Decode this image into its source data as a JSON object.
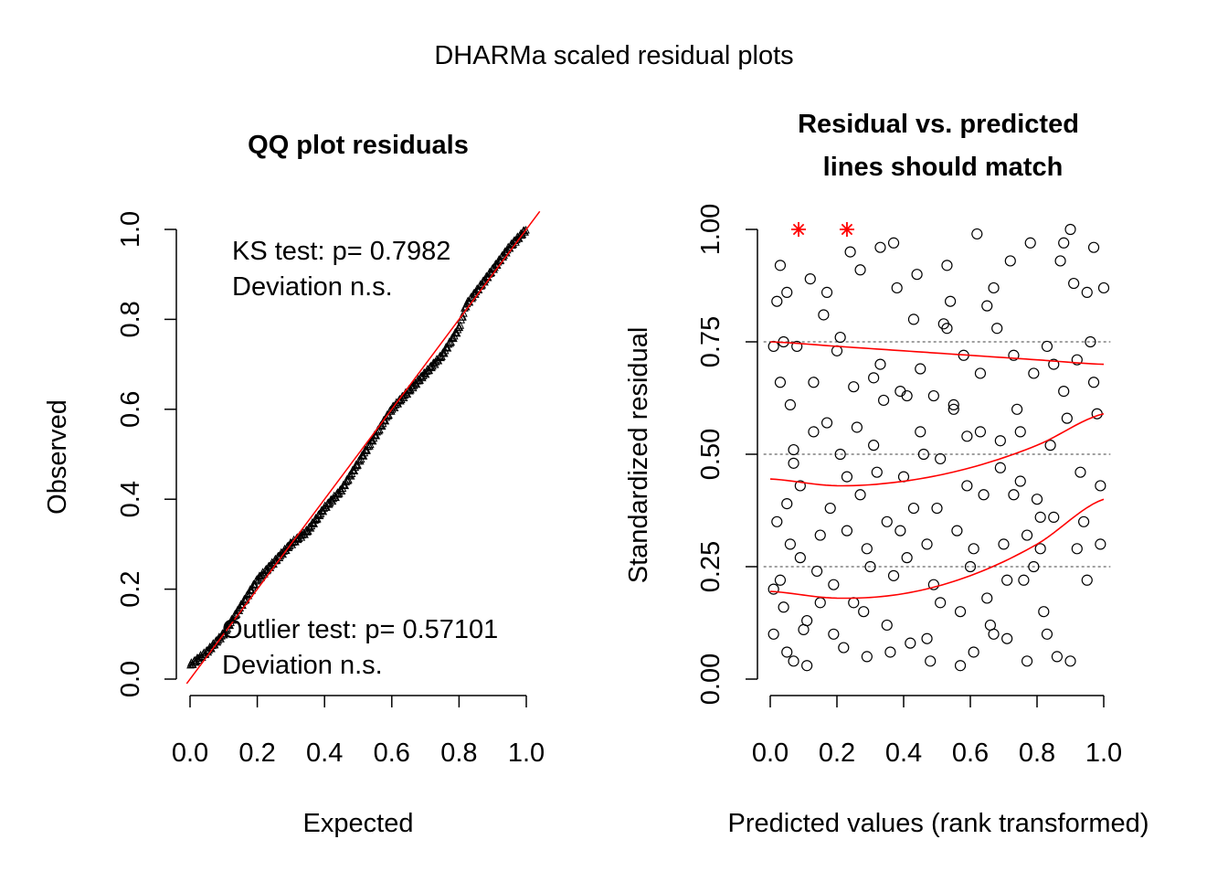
{
  "main_title": "DHARMa scaled residual plots",
  "chart_data": [
    {
      "type": "scatter",
      "title": "QQ plot residuals",
      "xlabel": "Expected",
      "ylabel": "Observed",
      "xlim": [
        0,
        1
      ],
      "ylim": [
        0,
        1
      ],
      "xticks": [
        "0.0",
        "0.2",
        "0.4",
        "0.6",
        "0.8",
        "1.0"
      ],
      "yticks": [
        "0.0",
        "0.2",
        "0.4",
        "0.6",
        "0.8",
        "1.0"
      ],
      "grid": false,
      "point_symbol": "triangle",
      "point_color": "#000000",
      "reference_line": {
        "slope": 1,
        "intercept": 0,
        "color": "#ff0000"
      },
      "annotations": {
        "ks_line1": "KS test: p= 0.7982",
        "ks_line2": "Deviation  n.s.",
        "outlier_line1": "Outlier test: p= 0.57101",
        "outlier_line2": "Deviation  n.s."
      },
      "series": [
        {
          "n_points": 400,
          "quantile_curve_expected": [
            0.0,
            0.05,
            0.1,
            0.15,
            0.2,
            0.25,
            0.3,
            0.35,
            0.4,
            0.45,
            0.5,
            0.55,
            0.6,
            0.65,
            0.7,
            0.75,
            0.8,
            0.82,
            0.85,
            0.9,
            0.95,
            1.0
          ],
          "quantile_curve_observed": [
            0.03,
            0.06,
            0.1,
            0.16,
            0.22,
            0.26,
            0.3,
            0.33,
            0.38,
            0.42,
            0.48,
            0.54,
            0.6,
            0.64,
            0.68,
            0.72,
            0.78,
            0.83,
            0.86,
            0.91,
            0.96,
            1.0
          ]
        }
      ]
    },
    {
      "type": "scatter",
      "title_lines": [
        "Residual vs. predicted",
        "lines should match"
      ],
      "xlabel": "Predicted values (rank transformed)",
      "ylabel": "Standardized residual",
      "xlim": [
        0,
        1
      ],
      "ylim": [
        0,
        1
      ],
      "xticks": [
        "0.0",
        "0.2",
        "0.4",
        "0.6",
        "0.8",
        "1.0"
      ],
      "yticks": [
        "0.00",
        "0.25",
        "0.50",
        "0.75",
        "1.00"
      ],
      "reference_lines_y": [
        0.25,
        0.5,
        0.75
      ],
      "reference_line_style": "dashed",
      "point_symbol": "open-circle",
      "outlier_symbol": "asterisk",
      "outlier_color": "#ff0000",
      "quantile_curve_color": "#ff0000",
      "outliers": [
        {
          "x": 0.085,
          "y": 1.0
        },
        {
          "x": 0.23,
          "y": 1.0
        }
      ],
      "quantile_curves": [
        {
          "quantile": 0.25,
          "x": [
            0.0,
            0.2,
            0.4,
            0.6,
            0.8,
            1.0
          ],
          "y": [
            0.195,
            0.18,
            0.19,
            0.23,
            0.3,
            0.4
          ]
        },
        {
          "quantile": 0.5,
          "x": [
            0.0,
            0.2,
            0.4,
            0.6,
            0.8,
            1.0
          ],
          "y": [
            0.445,
            0.43,
            0.44,
            0.47,
            0.52,
            0.59
          ]
        },
        {
          "quantile": 0.75,
          "x": [
            0.0,
            0.2,
            0.4,
            0.6,
            0.8,
            1.0
          ],
          "y": [
            0.75,
            0.74,
            0.73,
            0.72,
            0.71,
            0.7
          ]
        }
      ],
      "series": [
        {
          "name": "",
          "points": [
            [
              0.01,
              0.74
            ],
            [
              0.02,
              0.84
            ],
            [
              0.03,
              0.92
            ],
            [
              0.04,
              0.75
            ],
            [
              0.05,
              0.86
            ],
            [
              0.06,
              0.61
            ],
            [
              0.07,
              0.48
            ],
            [
              0.02,
              0.35
            ],
            [
              0.03,
              0.22
            ],
            [
              0.04,
              0.16
            ],
            [
              0.05,
              0.06
            ],
            [
              0.01,
              0.1
            ],
            [
              0.06,
              0.3
            ],
            [
              0.07,
              0.51
            ],
            [
              0.08,
              0.74
            ],
            [
              0.09,
              0.43
            ],
            [
              0.1,
              0.11
            ],
            [
              0.11,
              0.13
            ],
            [
              0.12,
              0.89
            ],
            [
              0.13,
              0.66
            ],
            [
              0.14,
              0.24
            ],
            [
              0.15,
              0.17
            ],
            [
              0.16,
              0.81
            ],
            [
              0.17,
              0.57
            ],
            [
              0.18,
              0.38
            ],
            [
              0.19,
              0.21
            ],
            [
              0.2,
              0.73
            ],
            [
              0.21,
              0.5
            ],
            [
              0.22,
              0.07
            ],
            [
              0.23,
              0.33
            ],
            [
              0.24,
              0.95
            ],
            [
              0.25,
              0.65
            ],
            [
              0.26,
              0.56
            ],
            [
              0.27,
              0.41
            ],
            [
              0.28,
              0.15
            ],
            [
              0.29,
              0.05
            ],
            [
              0.3,
              0.25
            ],
            [
              0.31,
              0.67
            ],
            [
              0.32,
              0.46
            ],
            [
              0.33,
              0.96
            ],
            [
              0.34,
              0.62
            ],
            [
              0.35,
              0.35
            ],
            [
              0.36,
              0.06
            ],
            [
              0.37,
              0.97
            ],
            [
              0.38,
              0.87
            ],
            [
              0.39,
              0.64
            ],
            [
              0.4,
              0.45
            ],
            [
              0.41,
              0.27
            ],
            [
              0.42,
              0.08
            ],
            [
              0.43,
              0.8
            ],
            [
              0.44,
              0.9
            ],
            [
              0.45,
              0.69
            ],
            [
              0.46,
              0.5
            ],
            [
              0.47,
              0.3
            ],
            [
              0.48,
              0.04
            ],
            [
              0.49,
              0.63
            ],
            [
              0.5,
              0.38
            ],
            [
              0.51,
              0.17
            ],
            [
              0.52,
              0.79
            ],
            [
              0.53,
              0.92
            ],
            [
              0.54,
              0.84
            ],
            [
              0.55,
              0.61
            ],
            [
              0.56,
              0.33
            ],
            [
              0.57,
              0.03
            ],
            [
              0.58,
              0.72
            ],
            [
              0.59,
              0.54
            ],
            [
              0.6,
              0.25
            ],
            [
              0.61,
              0.06
            ],
            [
              0.62,
              0.99
            ],
            [
              0.63,
              0.68
            ],
            [
              0.64,
              0.41
            ],
            [
              0.65,
              0.18
            ],
            [
              0.66,
              0.12
            ],
            [
              0.67,
              0.87
            ],
            [
              0.68,
              0.78
            ],
            [
              0.69,
              0.53
            ],
            [
              0.7,
              0.3
            ],
            [
              0.71,
              0.09
            ],
            [
              0.72,
              0.93
            ],
            [
              0.73,
              0.72
            ],
            [
              0.74,
              0.6
            ],
            [
              0.75,
              0.44
            ],
            [
              0.76,
              0.22
            ],
            [
              0.77,
              0.04
            ],
            [
              0.78,
              0.97
            ],
            [
              0.79,
              0.68
            ],
            [
              0.8,
              0.4
            ],
            [
              0.81,
              0.29
            ],
            [
              0.82,
              0.15
            ],
            [
              0.83,
              0.74
            ],
            [
              0.84,
              0.52
            ],
            [
              0.85,
              0.36
            ],
            [
              0.86,
              0.05
            ],
            [
              0.87,
              0.93
            ],
            [
              0.88,
              0.64
            ],
            [
              0.89,
              0.58
            ],
            [
              0.9,
              0.04
            ],
            [
              0.91,
              0.88
            ],
            [
              0.92,
              0.71
            ],
            [
              0.93,
              0.46
            ],
            [
              0.94,
              0.35
            ],
            [
              0.95,
              0.22
            ],
            [
              0.96,
              0.75
            ],
            [
              0.97,
              0.66
            ],
            [
              0.98,
              0.59
            ],
            [
              0.99,
              0.3
            ],
            [
              1.0,
              0.87
            ],
            [
              0.99,
              0.43
            ],
            [
              0.97,
              0.96
            ],
            [
              0.95,
              0.86
            ],
            [
              0.92,
              0.29
            ],
            [
              0.9,
              1.0
            ],
            [
              0.88,
              0.97
            ],
            [
              0.85,
              0.7
            ],
            [
              0.83,
              0.1
            ],
            [
              0.81,
              0.36
            ],
            [
              0.79,
              0.25
            ],
            [
              0.77,
              0.32
            ],
            [
              0.75,
              0.55
            ],
            [
              0.73,
              0.41
            ],
            [
              0.71,
              0.22
            ],
            [
              0.69,
              0.47
            ],
            [
              0.67,
              0.1
            ],
            [
              0.65,
              0.83
            ],
            [
              0.63,
              0.55
            ],
            [
              0.61,
              0.29
            ],
            [
              0.59,
              0.43
            ],
            [
              0.57,
              0.15
            ],
            [
              0.55,
              0.6
            ],
            [
              0.53,
              0.78
            ],
            [
              0.51,
              0.49
            ],
            [
              0.49,
              0.21
            ],
            [
              0.47,
              0.09
            ],
            [
              0.45,
              0.55
            ],
            [
              0.43,
              0.38
            ],
            [
              0.41,
              0.63
            ],
            [
              0.39,
              0.33
            ],
            [
              0.37,
              0.23
            ],
            [
              0.35,
              0.12
            ],
            [
              0.33,
              0.7
            ],
            [
              0.31,
              0.52
            ],
            [
              0.29,
              0.29
            ],
            [
              0.27,
              0.91
            ],
            [
              0.25,
              0.17
            ],
            [
              0.23,
              0.45
            ],
            [
              0.21,
              0.76
            ],
            [
              0.19,
              0.1
            ],
            [
              0.17,
              0.86
            ],
            [
              0.15,
              0.32
            ],
            [
              0.13,
              0.55
            ],
            [
              0.11,
              0.03
            ],
            [
              0.09,
              0.27
            ],
            [
              0.07,
              0.04
            ],
            [
              0.05,
              0.39
            ],
            [
              0.03,
              0.66
            ],
            [
              0.01,
              0.2
            ]
          ]
        }
      ]
    }
  ]
}
